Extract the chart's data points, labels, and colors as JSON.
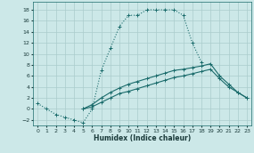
{
  "xlabel": "Humidex (Indice chaleur)",
  "bg_color": "#cce8e8",
  "grid_color": "#aacccc",
  "line_color": "#1a6b6b",
  "xlim": [
    -0.5,
    23.5
  ],
  "ylim": [
    -3.0,
    19.5
  ],
  "xticks": [
    0,
    1,
    2,
    3,
    4,
    5,
    6,
    7,
    8,
    9,
    10,
    11,
    12,
    13,
    14,
    15,
    16,
    17,
    18,
    19,
    20,
    21,
    22,
    23
  ],
  "yticks": [
    -2,
    0,
    2,
    4,
    6,
    8,
    10,
    12,
    14,
    16,
    18
  ],
  "line1_x": [
    0,
    1,
    2,
    3,
    4,
    5,
    6,
    7,
    8,
    9,
    10,
    11,
    12,
    13,
    14,
    15,
    16,
    17,
    18
  ],
  "line1_y": [
    1,
    0,
    -1,
    -1.5,
    -2,
    -2.5,
    0,
    7,
    11,
    15,
    17,
    17,
    18,
    18,
    18,
    18,
    17,
    12,
    8.5
  ],
  "line2_x": [
    5,
    6,
    7,
    8,
    9,
    10,
    11,
    12,
    13,
    14,
    15,
    16,
    17,
    18,
    19,
    20,
    21,
    22,
    23
  ],
  "line2_y": [
    0,
    0.8,
    2.0,
    3.0,
    3.8,
    4.5,
    5.0,
    5.5,
    6.0,
    6.5,
    7.0,
    7.2,
    7.5,
    7.8,
    8.2,
    6.0,
    4.5,
    3.0,
    2.0
  ],
  "line3_x": [
    5,
    6,
    7,
    8,
    9,
    10,
    11,
    12,
    13,
    14,
    15,
    16,
    17,
    18,
    19,
    20,
    21,
    22,
    23
  ],
  "line3_y": [
    0,
    0.4,
    1.2,
    2.0,
    2.8,
    3.2,
    3.7,
    4.2,
    4.7,
    5.2,
    5.7,
    6.0,
    6.4,
    6.8,
    7.2,
    5.5,
    4.0,
    3.0,
    2.0
  ],
  "markersize": 3,
  "linewidth": 0.8
}
